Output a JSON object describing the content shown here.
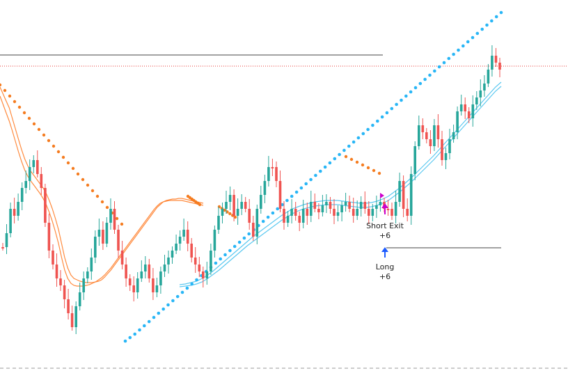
{
  "colors": {
    "background": "#ffffff",
    "bull_candle": "#26a69a",
    "bear_candle": "#ef5350",
    "band_orange": "#ff8a3d",
    "band_blue": "#5bc8f0",
    "dots_orange": "#f57c20",
    "dots_blue": "#29b6f6",
    "level_line": "#444444",
    "dotted_red_level": "#e53935",
    "bottom_dashed": "#999999",
    "short_exit_marker": "#cc00cc",
    "long_marker": "#1e5cff"
  },
  "signals": {
    "short_exit": {
      "label": "Short Exit",
      "value": "+6",
      "icon": "arrow-up-icon"
    },
    "long": {
      "label": "Long",
      "value": "+6",
      "icon": "arrow-up-icon"
    }
  },
  "chart_data": {
    "type": "candlestick",
    "title": "",
    "xlabel": "",
    "ylabel": "",
    "ylim": [
      0,
      533
    ],
    "grid": false,
    "legend": "none",
    "series": [
      {
        "type": "candlestick",
        "close_path": [
          355,
          335,
          300,
          310,
          290,
          270,
          260,
          240,
          230,
          250,
          270,
          320,
          360,
          380,
          400,
          410,
          430,
          450,
          470,
          440,
          420,
          400,
          390,
          370,
          340,
          330,
          350,
          320,
          300,
          330,
          360,
          380,
          400,
          410,
          420,
          400,
          390,
          380,
          400,
          420,
          410,
          390,
          380,
          370,
          360,
          350,
          340,
          330,
          350,
          370,
          380,
          390,
          400,
          390,
          360,
          330,
          310,
          300,
          290,
          280,
          310,
          300,
          290,
          300,
          320,
          340,
          300,
          280,
          260,
          240,
          240,
          260,
          300,
          320,
          310,
          300,
          310,
          320,
          300,
          310,
          290,
          300,
          305,
          295,
          290,
          300,
          310,
          305,
          295,
          290,
          300,
          310,
          300,
          290,
          300,
          310,
          300,
          295,
          290,
          300,
          300,
          310,
          290,
          260,
          300,
          310,
          250,
          210,
          180,
          190,
          200,
          210,
          180,
          200,
          230,
          220,
          200,
          190,
          160,
          150,
          160,
          170,
          150,
          140,
          130,
          120,
          100,
          80,
          90,
          100
        ]
      },
      {
        "type": "line",
        "role": "orange band (upper)",
        "y": [
          125,
          135,
          145,
          155,
          170,
          185,
          200,
          215,
          228,
          238,
          246,
          252,
          258,
          264,
          270,
          278,
          288,
          300,
          314,
          330,
          350,
          370,
          385,
          395,
          400,
          402,
          404,
          405,
          406,
          406,
          406,
          405,
          404,
          402,
          398,
          393,
          388,
          382,
          376,
          370,
          364,
          358,
          352,
          346,
          340,
          334,
          328,
          322,
          316,
          310,
          304,
          298,
          294,
          290,
          288,
          287,
          286,
          286,
          285,
          285,
          286,
          287,
          288,
          289,
          290,
          291,
          292
        ]
      },
      {
        "type": "line",
        "role": "orange band (lower)",
        "y": [
          138,
          150,
          162,
          174,
          188,
          203,
          218,
          232,
          244,
          253,
          260,
          266,
          272,
          278,
          285,
          294,
          305,
          318,
          333,
          350,
          370,
          388,
          400,
          407,
          410,
          411,
          411,
          411,
          410,
          409,
          407,
          405,
          402,
          399,
          395,
          390,
          385,
          379,
          373,
          367,
          361,
          355,
          349,
          343,
          337,
          331,
          325,
          319,
          313,
          307,
          301,
          296,
          292,
          290,
          289,
          288,
          288,
          288,
          288,
          288,
          289,
          290,
          291,
          292,
          293,
          294,
          295
        ]
      },
      {
        "type": "line",
        "role": "blue band (upper)",
        "y": [
          409,
          408,
          406,
          404,
          400,
          395,
          389,
          382,
          375,
          368,
          361,
          354,
          347,
          340,
          334,
          328,
          322,
          316,
          310,
          305,
          300,
          297,
          294,
          292,
          290,
          289,
          288,
          288,
          288,
          289,
          290,
          291,
          292,
          292,
          291,
          289,
          286,
          282,
          276,
          270,
          263,
          256,
          248,
          240,
          232,
          224,
          215,
          206,
          197,
          188,
          179,
          170,
          161,
          152,
          143,
          134,
          125,
          118
        ]
      },
      {
        "type": "line",
        "role": "blue band (lower)",
        "y": [
          412,
          411,
          410,
          408,
          405,
          400,
          394,
          388,
          381,
          374,
          367,
          360,
          353,
          347,
          341,
          335,
          329,
          323,
          317,
          312,
          307,
          303,
          300,
          298,
          296,
          295,
          294,
          294,
          294,
          295,
          296,
          297,
          298,
          298,
          297,
          295,
          292,
          288,
          282,
          276,
          269,
          262,
          254,
          246,
          238,
          230,
          221,
          212,
          203,
          194,
          185,
          176,
          167,
          158,
          149,
          140,
          131,
          124
        ]
      },
      {
        "type": "scatter",
        "role": "orange dots",
        "y": [
          122,
          130,
          138,
          146,
          154,
          162,
          170,
          178,
          186,
          194,
          202,
          210,
          218,
          226,
          234,
          242,
          250,
          258,
          266,
          274,
          282,
          290,
          298,
          306,
          314,
          322
        ]
      },
      {
        "type": "scatter",
        "role": "blue dots",
        "y": [
          490,
          485,
          480,
          474,
          468,
          462,
          456,
          450,
          444,
          438,
          432,
          426,
          420,
          414,
          408,
          402,
          396,
          390,
          384,
          378,
          372,
          366,
          360,
          354,
          348,
          342,
          336,
          330,
          324,
          318,
          312,
          306,
          300,
          294,
          288,
          282,
          276,
          270,
          264,
          258,
          252,
          246,
          240,
          234,
          228,
          222,
          216,
          210,
          204,
          198,
          192,
          186,
          180,
          174,
          168,
          162,
          156,
          150,
          144,
          138,
          132,
          126,
          120,
          114,
          108,
          102,
          96,
          90,
          84,
          78,
          72,
          66,
          60,
          54,
          48,
          42,
          36,
          30,
          24,
          18
        ]
      }
    ],
    "levels": [
      {
        "role": "horizontal solid (top)",
        "y": 79
      },
      {
        "role": "horizontal dotted red",
        "y": 95
      },
      {
        "role": "horizontal solid (signal)",
        "y": 356
      },
      {
        "role": "bottom dashed",
        "y": 529
      }
    ]
  }
}
